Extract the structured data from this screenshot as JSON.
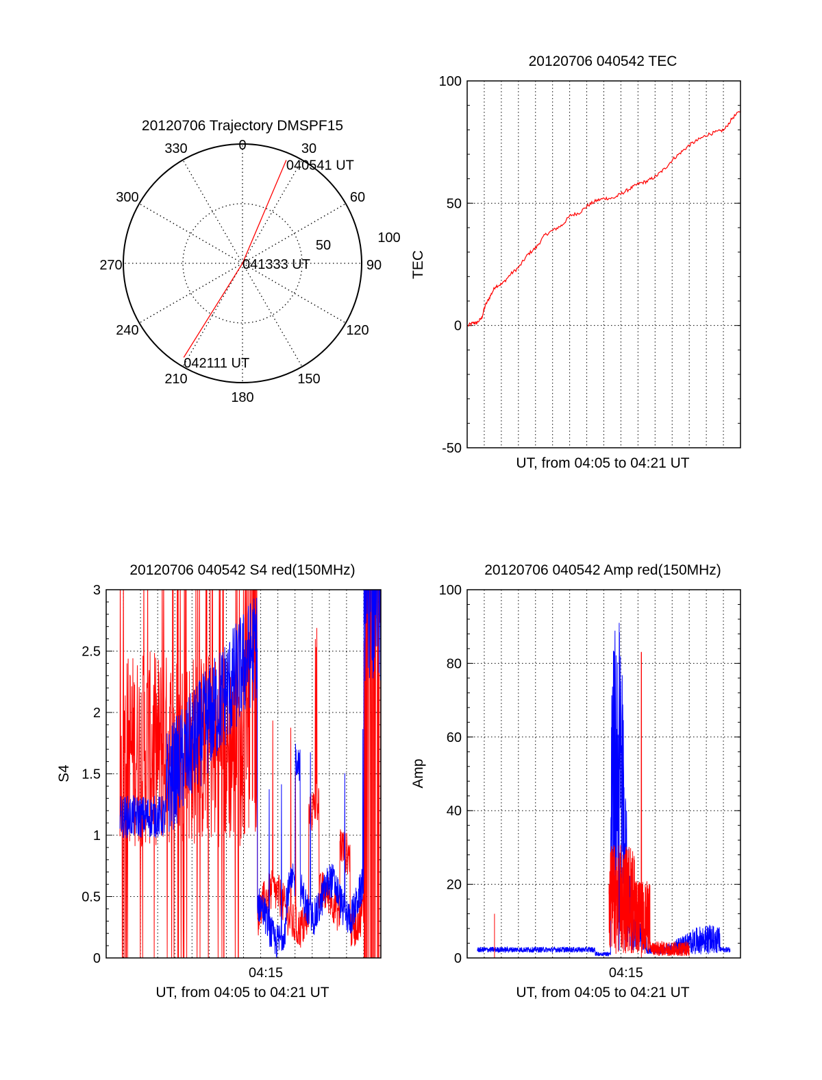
{
  "colors": {
    "red": "#ff0000",
    "blue": "#0000ff",
    "axis": "#000000",
    "grid": "#000000"
  },
  "chart_data": [
    {
      "type": "polar",
      "title": "20120706 Trajectory DMSPF15",
      "angle_labels": [
        "0",
        "30",
        "60",
        "90",
        "120",
        "150",
        "180",
        "210",
        "240",
        "270",
        "300",
        "330"
      ],
      "angles": [
        0,
        30,
        60,
        90,
        120,
        150,
        180,
        210,
        240,
        270,
        300,
        330
      ],
      "radial_labels": [
        "50",
        "100"
      ],
      "radial_values": [
        50,
        100
      ],
      "rmax": 100,
      "trajectory": [
        {
          "az": 23,
          "el_r": 94,
          "label": "040541 UT"
        },
        {
          "az": 0,
          "el_r": 0,
          "label": "041333 UT"
        },
        {
          "az": 212,
          "el_r": 93,
          "label": "042111 UT"
        }
      ],
      "series_color": "red",
      "grid": true
    },
    {
      "type": "line",
      "title": "20120706 040542 TEC",
      "xlabel": "UT, from 04:05 to 04:21 UT",
      "ylabel": "TEC",
      "xlim": [
        0,
        16
      ],
      "ylim": [
        -50,
        100
      ],
      "yticks": [
        -50,
        0,
        50,
        100
      ],
      "ytick_labels": [
        "-50",
        "0",
        "50",
        "100"
      ],
      "xticks": [],
      "grid": true,
      "series": [
        {
          "color": "red",
          "x": [
            0,
            0.3,
            0.5,
            0.8,
            1.0,
            1.3,
            1.6,
            2.0,
            2.5,
            3.0,
            3.5,
            4.0,
            4.5,
            5.0,
            5.5,
            6.0,
            6.5,
            7.0,
            7.5,
            8.0,
            8.5,
            9.0,
            9.5,
            10.0,
            10.5,
            11.0,
            11.5,
            12.0,
            12.5,
            13.0,
            13.5,
            14.0,
            14.5,
            15.0,
            15.5,
            16.0
          ],
          "y": [
            0,
            1,
            1,
            3,
            8,
            12,
            16,
            17,
            21,
            24,
            29,
            32,
            37,
            39,
            41,
            45,
            46,
            49,
            51,
            52,
            52,
            54,
            56,
            58,
            59,
            61,
            64,
            68,
            71,
            74,
            76,
            78,
            79,
            80,
            85,
            88
          ]
        }
      ]
    },
    {
      "type": "line",
      "title": "20120706 040542 S4 red(150MHz)",
      "xlabel": "UT, from 04:05 to 04:21 UT",
      "ylabel": "S4",
      "xlim": [
        0,
        16
      ],
      "ylim": [
        0,
        3
      ],
      "yticks": [
        0,
        0.5,
        1,
        1.5,
        2,
        2.5,
        3
      ],
      "ytick_labels": [
        "0",
        "0.5",
        "1",
        "1.5",
        "2",
        "2.5",
        "3"
      ],
      "xticks": [
        9.3
      ],
      "xtick_labels": [
        "04:15"
      ],
      "grid": true,
      "series": [
        {
          "color": "red",
          "desc": "S4 red"
        },
        {
          "color": "blue",
          "desc": "S4 blue"
        }
      ]
    },
    {
      "type": "line",
      "title": "20120706 040542 Amp red(150MHz)",
      "xlabel": "UT, from 04:05 to 04:21 UT",
      "ylabel": "Amp",
      "xlim": [
        0,
        16
      ],
      "ylim": [
        0,
        100
      ],
      "yticks": [
        0,
        20,
        40,
        60,
        80,
        100
      ],
      "ytick_labels": [
        "0",
        "20",
        "40",
        "60",
        "80",
        "100"
      ],
      "xticks": [
        9.3
      ],
      "xtick_labels": [
        "04:15"
      ],
      "grid": true,
      "series": [
        {
          "color": "blue",
          "peak_x": 8.9,
          "peak_y": 91
        },
        {
          "color": "red",
          "peak_x": 10.2,
          "peak_y": 83
        }
      ]
    }
  ]
}
